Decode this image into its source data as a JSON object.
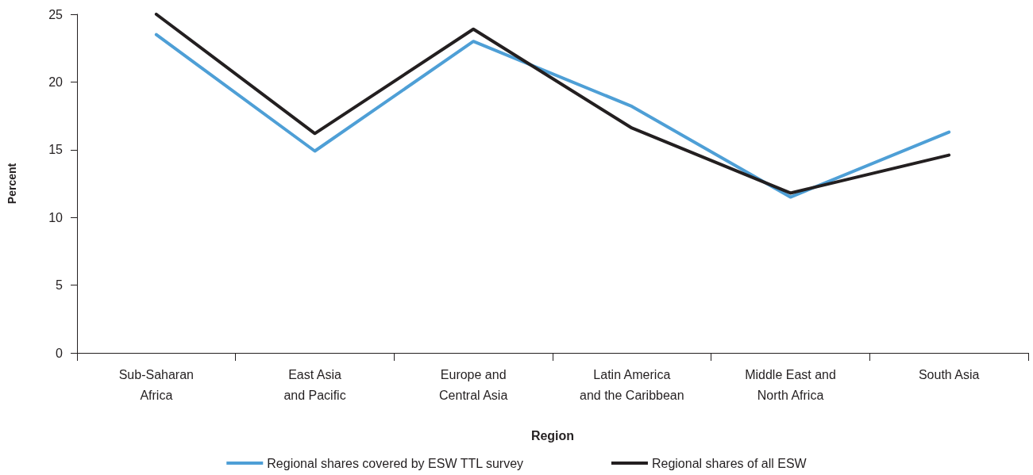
{
  "chart_data": {
    "type": "line",
    "xlabel": "Region",
    "ylabel": "Percent",
    "categories": [
      "Sub-Saharan\nAfrica",
      "East Asia\nand Pacific",
      "Europe and\nCentral Asia",
      "Latin America\nand the Caribbean",
      "Middle East and\nNorth Africa",
      "South Asia"
    ],
    "series": [
      {
        "name": "Regional shares covered by ESW TTL survey",
        "color": "#4e9fd6",
        "values": [
          23.5,
          14.9,
          23.0,
          18.2,
          11.5,
          16.3
        ]
      },
      {
        "name": "Regional shares of all ESW",
        "color": "#231f20",
        "values": [
          25.0,
          16.2,
          23.9,
          16.6,
          11.8,
          14.6
        ]
      }
    ],
    "ylim": [
      0,
      25
    ],
    "yticks": [
      0,
      5,
      10,
      15,
      20,
      25
    ],
    "grid": false,
    "legend": "bottom",
    "marker": "none",
    "line_style": "solid"
  }
}
